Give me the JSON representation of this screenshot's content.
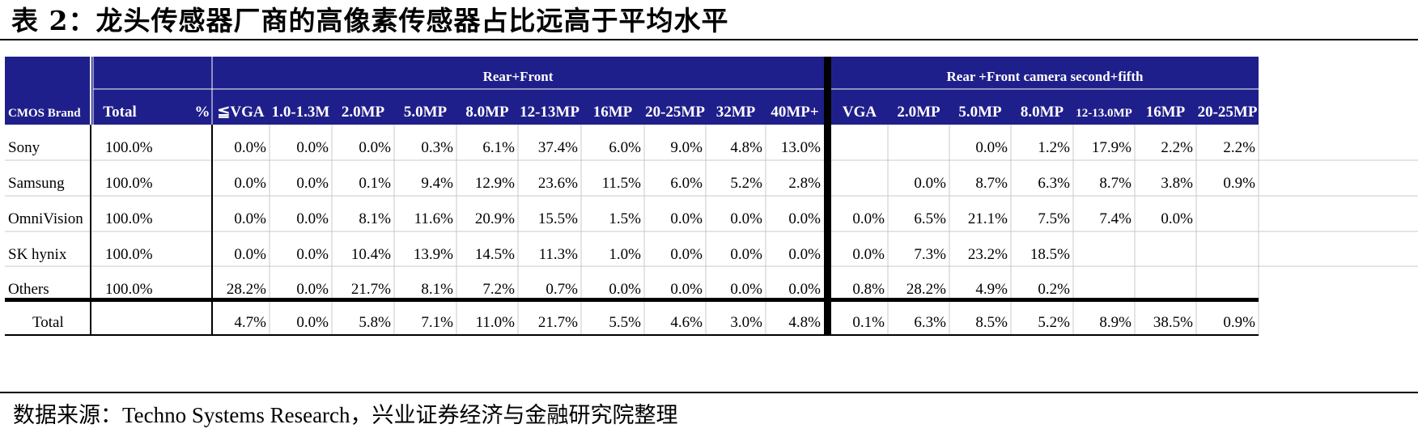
{
  "title": "表 2：龙头传感器厂商的高像素传感器占比远高于平均水平",
  "source": "数据来源：Techno Systems Research，兴业证券经济与金融研究院整理",
  "colors": {
    "header_bg": "#1F1F8B",
    "header_text": "#FFFFFF",
    "rule": "#000000"
  },
  "chart_data": {
    "type": "table",
    "group_headers": [
      {
        "label": "Rear+Front"
      },
      {
        "label": "Rear +Front camera second+fifth"
      }
    ],
    "columns": [
      "CMOS Brand",
      "Total",
      "%",
      "≦VGA",
      "1.0-1.3M",
      "2.0MP",
      "5.0MP",
      "8.0MP",
      "12-13MP",
      "16MP",
      "20-25MP",
      "32MP",
      "40MP+",
      "VGA",
      "2.0MP",
      "5.0MP",
      "8.0MP",
      "12-13.0MP",
      "16MP",
      "20-25MP"
    ],
    "rows": [
      {
        "brand": "Sony",
        "total": "100.0%",
        "values": [
          "0.0%",
          "0.0%",
          "0.0%",
          "0.3%",
          "6.1%",
          "37.4%",
          "6.0%",
          "9.0%",
          "4.8%",
          "13.0%",
          "",
          "",
          "0.0%",
          "1.2%",
          "17.9%",
          "2.2%",
          "2.2%"
        ]
      },
      {
        "brand": "Samsung",
        "total": "100.0%",
        "values": [
          "0.0%",
          "0.0%",
          "0.1%",
          "9.4%",
          "12.9%",
          "23.6%",
          "11.5%",
          "6.0%",
          "5.2%",
          "2.8%",
          "",
          "0.0%",
          "8.7%",
          "6.3%",
          "8.7%",
          "3.8%",
          "0.9%"
        ]
      },
      {
        "brand": "OmniVision",
        "total": "100.0%",
        "values": [
          "0.0%",
          "0.0%",
          "8.1%",
          "11.6%",
          "20.9%",
          "15.5%",
          "1.5%",
          "0.0%",
          "0.0%",
          "0.0%",
          "0.0%",
          "6.5%",
          "21.1%",
          "7.5%",
          "7.4%",
          "0.0%",
          ""
        ]
      },
      {
        "brand": "SK hynix",
        "total": "100.0%",
        "values": [
          "0.0%",
          "0.0%",
          "10.4%",
          "13.9%",
          "14.5%",
          "11.3%",
          "1.0%",
          "0.0%",
          "0.0%",
          "0.0%",
          "0.0%",
          "7.3%",
          "23.2%",
          "18.5%",
          "",
          "",
          ""
        ]
      },
      {
        "brand": "Others",
        "total": "100.0%",
        "values": [
          "28.2%",
          "0.0%",
          "21.7%",
          "8.1%",
          "7.2%",
          "0.7%",
          "0.0%",
          "0.0%",
          "0.0%",
          "0.0%",
          "0.8%",
          "28.2%",
          "4.9%",
          "0.2%",
          "",
          "",
          ""
        ]
      }
    ],
    "total_row": {
      "label": "Total",
      "values": [
        "4.7%",
        "0.0%",
        "5.8%",
        "7.1%",
        "11.0%",
        "21.7%",
        "5.5%",
        "4.6%",
        "3.0%",
        "4.8%",
        "0.1%",
        "6.3%",
        "8.5%",
        "5.2%",
        "8.9%",
        "38.5%",
        "0.9%"
      ]
    }
  }
}
